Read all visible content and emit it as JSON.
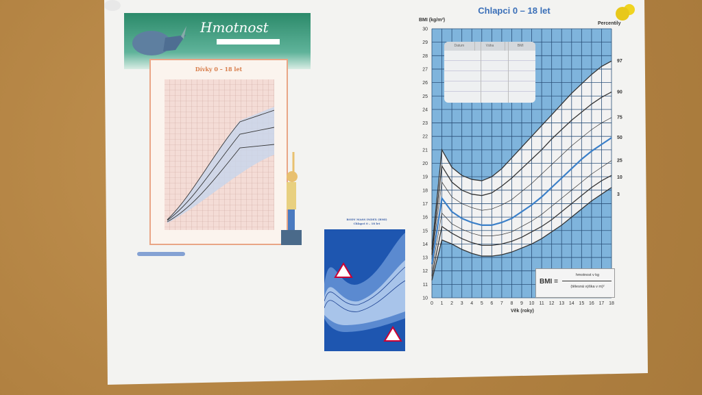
{
  "left_sheet": {
    "banner_title": "Hmotnost",
    "chart_title": "Dívky 0 – 18 let"
  },
  "middle_sheet": {
    "title_line1": "BODY MASS INDEX (BMI)",
    "title_line2": "Chlapci 0 – 18 let"
  },
  "main_sheet": {
    "title": "Chlapci 0 – 18 let",
    "record_table": {
      "headers": [
        "Datum",
        "Váha",
        "BMI"
      ]
    },
    "formula": {
      "lhs": "BMI =",
      "numerator": "hmotnost v kg",
      "denominator": "(tělesná výška v m)²"
    }
  },
  "colors": {
    "chart_background": "#7fb4dc",
    "band": "#f2f2f2",
    "median": "#3a7fc8",
    "percentile_lines": "#333333",
    "pin": "#e8c81a"
  },
  "chart_data": {
    "type": "line",
    "title": "Chlapci 0 – 18 let",
    "xlabel": "Věk (roky)",
    "ylabel": "BMI (kg/m²)",
    "legend_title": "Percentily",
    "xlim": [
      0,
      18
    ],
    "ylim": [
      10,
      30
    ],
    "grid": true,
    "x_ticks": [
      0,
      1,
      2,
      3,
      4,
      5,
      6,
      7,
      8,
      9,
      10,
      11,
      12,
      13,
      14,
      15,
      16,
      17,
      18
    ],
    "y_ticks": [
      10,
      11,
      12,
      13,
      14,
      15,
      16,
      17,
      18,
      19,
      20,
      21,
      22,
      23,
      24,
      25,
      26,
      27,
      28,
      29,
      30
    ],
    "x": [
      0,
      1,
      2,
      3,
      4,
      5,
      6,
      7,
      8,
      9,
      10,
      11,
      12,
      13,
      14,
      15,
      16,
      17,
      18
    ],
    "series": [
      {
        "name": "97",
        "values": [
          13.6,
          21.0,
          19.7,
          19.1,
          18.8,
          18.7,
          19.0,
          19.6,
          20.4,
          21.2,
          22.0,
          22.8,
          23.6,
          24.4,
          25.2,
          25.9,
          26.6,
          27.2,
          27.6
        ]
      },
      {
        "name": "90",
        "values": [
          13.2,
          19.8,
          18.6,
          18.0,
          17.7,
          17.6,
          17.8,
          18.3,
          18.9,
          19.6,
          20.3,
          21.0,
          21.8,
          22.5,
          23.2,
          23.8,
          24.4,
          24.9,
          25.3
        ]
      },
      {
        "name": "75",
        "values": [
          12.9,
          18.6,
          17.5,
          17.0,
          16.7,
          16.5,
          16.6,
          16.9,
          17.3,
          17.9,
          18.5,
          19.2,
          19.9,
          20.6,
          21.3,
          21.9,
          22.5,
          23.0,
          23.4
        ]
      },
      {
        "name": "50",
        "values": [
          12.5,
          17.4,
          16.4,
          15.9,
          15.6,
          15.4,
          15.4,
          15.6,
          15.9,
          16.4,
          16.9,
          17.5,
          18.2,
          18.9,
          19.6,
          20.3,
          20.9,
          21.4,
          21.9
        ]
      },
      {
        "name": "25",
        "values": [
          12.0,
          16.3,
          15.5,
          15.1,
          14.8,
          14.6,
          14.6,
          14.7,
          14.9,
          15.3,
          15.7,
          16.2,
          16.8,
          17.4,
          18.0,
          18.6,
          19.2,
          19.7,
          20.2
        ]
      },
      {
        "name": "10",
        "values": [
          11.6,
          15.3,
          14.8,
          14.4,
          14.1,
          13.9,
          13.9,
          14.0,
          14.2,
          14.5,
          14.9,
          15.3,
          15.8,
          16.4,
          17.0,
          17.6,
          18.2,
          18.7,
          19.1
        ]
      },
      {
        "name": "3",
        "values": [
          11.3,
          14.3,
          14.0,
          13.6,
          13.3,
          13.1,
          13.1,
          13.2,
          13.4,
          13.7,
          14.0,
          14.4,
          14.9,
          15.4,
          16.0,
          16.6,
          17.2,
          17.7,
          18.2
        ]
      }
    ]
  }
}
